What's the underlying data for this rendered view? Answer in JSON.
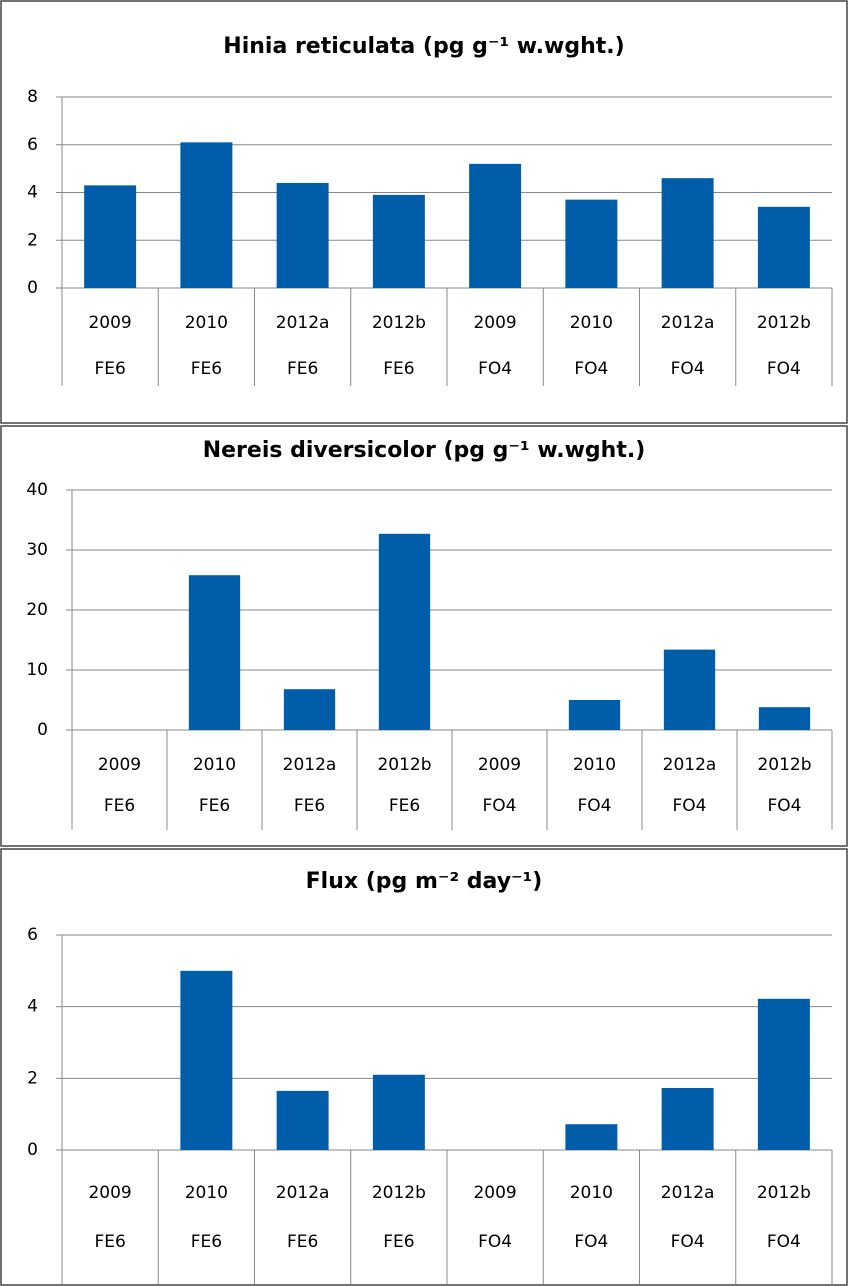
{
  "chart_data": [
    {
      "type": "bar",
      "title": "Hinia reticulata (pg g⁻¹ w.wght.)",
      "categories": [
        "2009",
        "2010",
        "2012a",
        "2012b",
        "2009",
        "2010",
        "2012a",
        "2012b"
      ],
      "groups": [
        "FE6",
        "FE6",
        "FE6",
        "FE6",
        "FO4",
        "FO4",
        "FO4",
        "FO4"
      ],
      "values": [
        4.3,
        6.1,
        4.4,
        3.9,
        5.2,
        3.7,
        4.6,
        3.4
      ],
      "color": "#005daa",
      "ylim": [
        0,
        8
      ],
      "yticks": [
        0,
        2,
        4,
        6,
        8
      ],
      "grid": true
    },
    {
      "type": "bar",
      "title": "Nereis diversicolor (pg g⁻¹ w.wght.)",
      "categories": [
        "2009",
        "2010",
        "2012a",
        "2012b",
        "2009",
        "2010",
        "2012a",
        "2012b"
      ],
      "groups": [
        "FE6",
        "FE6",
        "FE6",
        "FE6",
        "FO4",
        "FO4",
        "FO4",
        "FO4"
      ],
      "values": [
        null,
        25.8,
        6.8,
        32.7,
        null,
        5.0,
        13.4,
        3.8
      ],
      "color": "#005daa",
      "ylim": [
        0,
        40
      ],
      "yticks": [
        0,
        10,
        20,
        30,
        40
      ],
      "grid": true
    },
    {
      "type": "bar",
      "title": "Flux (pg m⁻² day⁻¹)",
      "categories": [
        "2009",
        "2010",
        "2012a",
        "2012b",
        "2009",
        "2010",
        "2012a",
        "2012b"
      ],
      "groups": [
        "FE6",
        "FE6",
        "FE6",
        "FE6",
        "FO4",
        "FO4",
        "FO4",
        "FO4"
      ],
      "values": [
        null,
        5.0,
        1.65,
        2.1,
        null,
        0.72,
        1.73,
        4.22
      ],
      "color": "#005daa",
      "ylim": [
        0,
        6
      ],
      "yticks": [
        0,
        2,
        4,
        6
      ],
      "grid": true
    }
  ]
}
